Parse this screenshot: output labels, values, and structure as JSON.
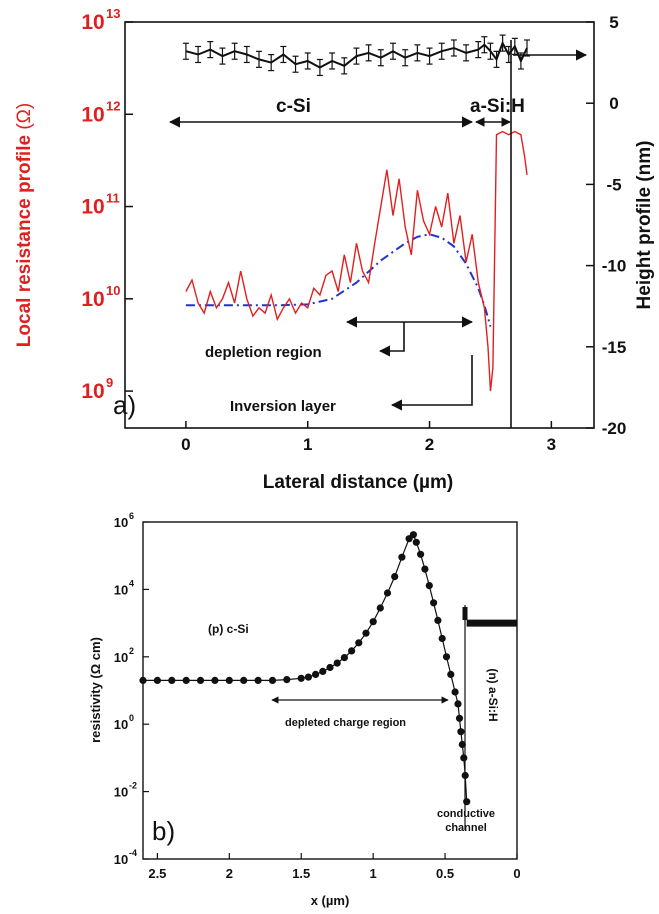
{
  "chart_data": [
    {
      "panel_label": "a)",
      "type": "line",
      "xlabel": "Lateral distance (µm)",
      "xlim": [
        -0.5,
        3.35
      ],
      "x_ticks": [
        "0",
        "1",
        "2",
        "3"
      ],
      "ylabel_left": "Local resistance profile (Ω)",
      "ylabel_left_parts": {
        "text": "Local resistance profile ",
        "unit": "(Ω)"
      },
      "ylim_left_log10": [
        8.6,
        13
      ],
      "y_ticks_left": [
        {
          "base": "10",
          "exp": "13",
          "value": 10000000000000.0
        },
        {
          "base": "10",
          "exp": "12",
          "value": 1000000000000.0
        },
        {
          "base": "10",
          "exp": "11",
          "value": 100000000000.0
        },
        {
          "base": "10",
          "exp": "10",
          "value": 10000000000.0
        },
        {
          "base": "10",
          "exp": "9",
          "value": 1000000000.0
        }
      ],
      "ylabel_right": "Height profile (nm)",
      "ylim_right": [
        -20,
        5
      ],
      "y_ticks_right": [
        "5",
        "0",
        "-5",
        "-10",
        "-15",
        "-20"
      ],
      "colors": {
        "resistance": "#e02020",
        "height": "#111111",
        "fit": "#2233cc"
      },
      "series": [
        {
          "name": "",
          "axis": "left",
          "style": "red solid",
          "x": [
            0,
            0.05,
            0.1,
            0.15,
            0.2,
            0.25,
            0.3,
            0.35,
            0.4,
            0.45,
            0.5,
            0.55,
            0.6,
            0.65,
            0.7,
            0.75,
            0.8,
            0.85,
            0.9,
            0.95,
            1.0,
            1.05,
            1.1,
            1.15,
            1.2,
            1.25,
            1.3,
            1.35,
            1.4,
            1.45,
            1.5,
            1.55,
            1.6,
            1.65,
            1.7,
            1.75,
            1.8,
            1.85,
            1.9,
            1.95,
            2.0,
            2.05,
            2.1,
            2.15,
            2.2,
            2.25,
            2.3,
            2.35,
            2.4,
            2.45,
            2.48,
            2.5,
            2.52,
            2.55,
            2.6,
            2.65,
            2.7,
            2.75,
            2.78,
            2.8
          ],
          "values": [
            12000000000.0,
            16000000000.0,
            9000000000.0,
            7000000000.0,
            12000000000.0,
            8000000000.0,
            10000000000.0,
            15000000000.0,
            9000000000.0,
            20000000000.0,
            10000000000.0,
            6500000000.0,
            8000000000.0,
            7000000000.0,
            11000000000.0,
            6000000000.0,
            8000000000.0,
            10000000000.0,
            7000000000.0,
            9000000000.0,
            8000000000.0,
            13000000000.0,
            11000000000.0,
            18000000000.0,
            20000000000.0,
            12000000000.0,
            30000000000.0,
            15000000000.0,
            40000000000.0,
            20000000000.0,
            15000000000.0,
            40000000000.0,
            100000000000.0,
            250000000000.0,
            80000000000.0,
            200000000000.0,
            60000000000.0,
            30000000000.0,
            150000000000.0,
            70000000000.0,
            50000000000.0,
            100000000000.0,
            60000000000.0,
            140000000000.0,
            40000000000.0,
            80000000000.0,
            25000000000.0,
            50000000000.0,
            15000000000.0,
            8000000000.0,
            3000000000.0,
            1000000000.0,
            1800000000.0,
            600000000000.0,
            650000000000.0,
            600000000000.0,
            650000000000.0,
            600000000000.0,
            350000000000.0,
            220000000000.0
          ]
        },
        {
          "name": "",
          "axis": "left",
          "style": "blue dash-dot fit",
          "x": [
            0,
            0.25,
            0.5,
            0.75,
            1.0,
            1.2,
            1.4,
            1.6,
            1.8,
            1.9,
            2.0,
            2.1,
            2.2,
            2.3,
            2.4,
            2.45,
            2.5
          ],
          "values": [
            8500000000.0,
            8500000000.0,
            8500000000.0,
            8500000000.0,
            8700000000.0,
            10000000000.0,
            15000000000.0,
            26000000000.0,
            40000000000.0,
            47000000000.0,
            50000000000.0,
            46000000000.0,
            37000000000.0,
            24000000000.0,
            13000000000.0,
            8500000000.0,
            5000000000.0
          ]
        },
        {
          "name": "",
          "axis": "right",
          "style": "black with error bars",
          "x": [
            0,
            0.1,
            0.2,
            0.3,
            0.4,
            0.5,
            0.6,
            0.7,
            0.8,
            0.9,
            1.0,
            1.1,
            1.2,
            1.3,
            1.4,
            1.5,
            1.6,
            1.7,
            1.8,
            1.9,
            2.0,
            2.1,
            2.2,
            2.3,
            2.4,
            2.45,
            2.5,
            2.55,
            2.6,
            2.65,
            2.7,
            2.75,
            2.8
          ],
          "values": [
            3.2,
            3.0,
            3.3,
            2.9,
            3.2,
            3.0,
            2.7,
            2.5,
            3.0,
            2.4,
            2.6,
            2.2,
            2.6,
            2.3,
            2.9,
            3.1,
            2.8,
            3.2,
            2.8,
            3.1,
            2.9,
            3.2,
            3.4,
            3.1,
            3.3,
            3.6,
            3.2,
            2.7,
            3.7,
            3.0,
            3.5,
            2.6,
            3.4
          ]
        }
      ],
      "annotations": [
        {
          "text": "c-Si"
        },
        {
          "text": "a-Si:H"
        },
        {
          "text": "depletion region"
        },
        {
          "text": "Inversion layer"
        }
      ]
    },
    {
      "panel_label": "b)",
      "type": "line",
      "xlabel": "x (µm)",
      "x_reversed": true,
      "xlim": [
        2.6,
        0
      ],
      "x_ticks": [
        "2.5",
        "2",
        "1.5",
        "1",
        "0.5",
        "0"
      ],
      "ylabel": "resistivity (Ω cm)",
      "ylim_log10": [
        -4,
        6
      ],
      "y_ticks": [
        {
          "base": "10",
          "exp": "6",
          "value": 1000000.0
        },
        {
          "base": "10",
          "exp": "4",
          "value": 10000.0
        },
        {
          "base": "10",
          "exp": "2",
          "value": 100.0
        },
        {
          "base": "10",
          "exp": "0",
          "value": 1
        },
        {
          "base": "10",
          "exp": "-2",
          "value": 0.01
        },
        {
          "base": "10",
          "exp": "-4",
          "value": 0.0001
        }
      ],
      "series": [
        {
          "name": "",
          "style": "black line with markers",
          "x": [
            2.6,
            2.5,
            2.4,
            2.3,
            2.2,
            2.1,
            2.0,
            1.9,
            1.8,
            1.7,
            1.6,
            1.5,
            1.45,
            1.4,
            1.35,
            1.3,
            1.25,
            1.2,
            1.15,
            1.1,
            1.05,
            1.0,
            0.95,
            0.9,
            0.85,
            0.8,
            0.75,
            0.72,
            0.7,
            0.67,
            0.64,
            0.61,
            0.58,
            0.55,
            0.52,
            0.49,
            0.46,
            0.43,
            0.41,
            0.4,
            0.39,
            0.38,
            0.37,
            0.36,
            0.35
          ],
          "values": [
            20,
            20,
            20,
            20,
            20,
            20,
            20,
            20,
            20,
            20,
            21,
            23,
            25,
            30,
            37,
            48,
            65,
            95,
            150,
            260,
            500,
            1100,
            2800,
            7800,
            24000,
            90000,
            320000,
            420000,
            250000,
            110000,
            40000,
            13000,
            4000,
            1200,
            350,
            100,
            30,
            9,
            4,
            1.5,
            0.6,
            0.25,
            0.1,
            0.03,
            0.005
          ]
        },
        {
          "name": "",
          "style": "thick black (n) a-Si:H level",
          "x": [
            0.35,
            0.0
          ],
          "values": [
            1000,
            1000
          ]
        }
      ],
      "annotations": [
        {
          "text": "(p) c-Si"
        },
        {
          "text": "depleted charge region"
        },
        {
          "text": "(n) a-Si:H"
        },
        {
          "text": "conductive channel",
          "lines": [
            "conductive",
            "channel"
          ]
        }
      ]
    }
  ]
}
